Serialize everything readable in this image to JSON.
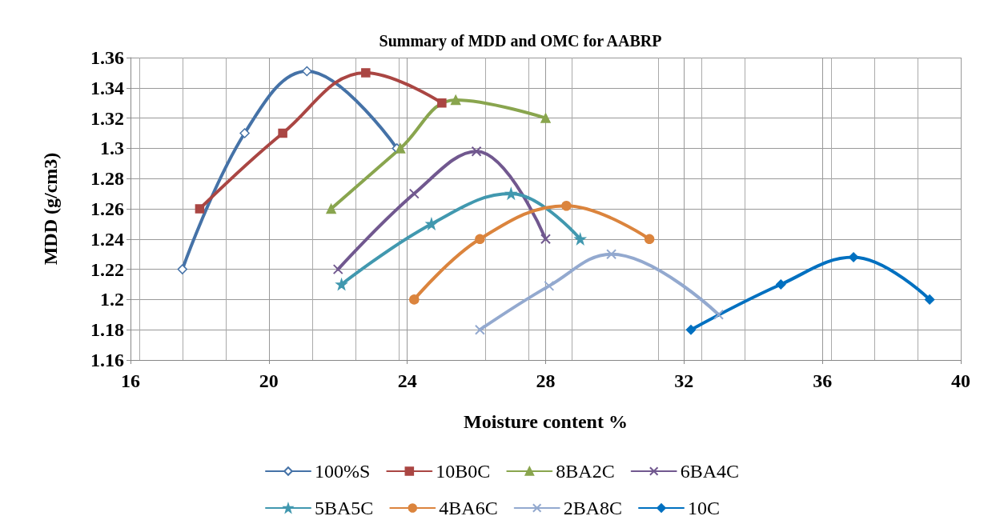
{
  "chart_data": {
    "type": "line",
    "title": "Summary of MDD and OMC for AABRP",
    "xlabel": "Moisture content %",
    "ylabel": "MDD (g/cm3)",
    "xlim": [
      16,
      40
    ],
    "xticks": [
      16,
      20,
      24,
      28,
      32,
      36,
      40
    ],
    "ylim": [
      1.16,
      1.36
    ],
    "yticks": [
      1.16,
      1.18,
      1.2,
      1.22,
      1.24,
      1.26,
      1.28,
      1.3,
      1.32,
      1.34,
      1.36
    ],
    "grid": true,
    "legend": "bottom",
    "line_style": "solid",
    "series": [
      {
        "name": "100%S",
        "color": "#4572a7",
        "marker": "diamond",
        "x": [
          17.5,
          19.3,
          21.1,
          23.7
        ],
        "values": [
          1.22,
          1.31,
          1.351,
          1.3
        ]
      },
      {
        "name": "10B0C",
        "color": "#aa4643",
        "marker": "square",
        "x": [
          18,
          20.4,
          22.8,
          25
        ],
        "values": [
          1.26,
          1.31,
          1.35,
          1.33
        ]
      },
      {
        "name": "8BA2C",
        "color": "#89a54e",
        "marker": "triangle",
        "x": [
          21.8,
          23.8,
          25.4,
          28
        ],
        "values": [
          1.26,
          1.3,
          1.332,
          1.32
        ]
      },
      {
        "name": "6BA4C",
        "color": "#71588f",
        "marker": "cross",
        "x": [
          22,
          24.2,
          26,
          28
        ],
        "values": [
          1.22,
          1.27,
          1.298,
          1.24
        ]
      },
      {
        "name": "5BA5C",
        "color": "#4198af",
        "marker": "star",
        "x": [
          22.1,
          24.7,
          27,
          29
        ],
        "values": [
          1.21,
          1.25,
          1.27,
          1.24
        ]
      },
      {
        "name": "4BA6C",
        "color": "#db843d",
        "marker": "circle",
        "x": [
          24.2,
          26.1,
          28.6,
          31
        ],
        "values": [
          1.2,
          1.24,
          1.262,
          1.24
        ]
      },
      {
        "name": "2BA8C",
        "color": "#93a9cf",
        "marker": "cross",
        "x": [
          26.1,
          28.1,
          29.9,
          33
        ],
        "values": [
          1.18,
          1.209,
          1.23,
          1.19
        ]
      },
      {
        "name": "10C",
        "color": "#0070c0",
        "marker": "diamond",
        "x": [
          32.2,
          34.8,
          36.9,
          39.1
        ],
        "values": [
          1.18,
          1.21,
          1.228,
          1.2
        ]
      }
    ]
  }
}
